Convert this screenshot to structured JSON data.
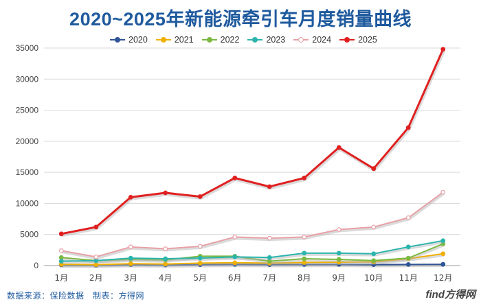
{
  "source_note": "数据来源：保险数据　制表：方得网",
  "watermark": "find方得网",
  "chart_data": {
    "type": "line",
    "title": "2020~2025年新能源牵引车月度销量曲线",
    "xlabel": "",
    "ylabel": "",
    "categories": [
      "1月",
      "2月",
      "3月",
      "4月",
      "5月",
      "6月",
      "7月",
      "8月",
      "9月",
      "10月",
      "11月",
      "12月"
    ],
    "ylim": [
      0,
      35000
    ],
    "yticks": [
      0,
      5000,
      10000,
      15000,
      20000,
      25000,
      30000,
      35000
    ],
    "grid": true,
    "legend_position": "top",
    "series": [
      {
        "name": "2020",
        "color": "#2f5597",
        "marker": "filled",
        "values": [
          100,
          50,
          150,
          100,
          150,
          200,
          150,
          180,
          200,
          150,
          180,
          200
        ]
      },
      {
        "name": "2021",
        "color": "#f0b000",
        "marker": "filled",
        "values": [
          200,
          150,
          300,
          250,
          400,
          450,
          400,
          500,
          550,
          600,
          1100,
          1900
        ]
      },
      {
        "name": "2022",
        "color": "#7cb842",
        "marker": "filled",
        "values": [
          1300,
          800,
          1000,
          900,
          1500,
          1500,
          700,
          1100,
          1000,
          800,
          1200,
          3500
        ]
      },
      {
        "name": "2023",
        "color": "#2bb5ad",
        "marker": "filled",
        "values": [
          700,
          800,
          1200,
          1100,
          1200,
          1400,
          1300,
          2000,
          2000,
          1900,
          3000,
          4000
        ]
      },
      {
        "name": "2024",
        "color": "#e8a0a6",
        "marker": "hollow",
        "values": [
          2400,
          1400,
          3000,
          2700,
          3100,
          4600,
          4400,
          4600,
          5800,
          6200,
          7700,
          11800
        ]
      },
      {
        "name": "2025",
        "color": "#e02020",
        "marker": "filled",
        "values": [
          5100,
          6200,
          11000,
          11700,
          11100,
          14100,
          12700,
          14100,
          19000,
          15600,
          22200,
          34800
        ]
      }
    ]
  }
}
